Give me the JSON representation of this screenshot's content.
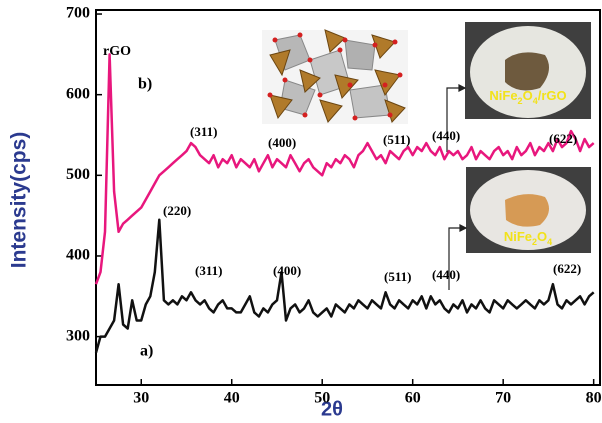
{
  "chart_data": {
    "type": "line",
    "x_label": "2θ",
    "y_label": "Intensity(cps)",
    "xlim": [
      25,
      80.7
    ],
    "ylim": [
      240,
      705
    ],
    "xticks": [
      30,
      40,
      50,
      60,
      70,
      80
    ],
    "yticks": [
      300,
      400,
      500,
      600,
      700
    ],
    "x": [
      25,
      25.5,
      26,
      26.5,
      27,
      27.5,
      28,
      28.5,
      29,
      29.5,
      30,
      30.5,
      31,
      31.5,
      32,
      32.5,
      33,
      33.5,
      34,
      34.5,
      35,
      35.5,
      36,
      36.5,
      37,
      37.5,
      38,
      38.5,
      39,
      39.5,
      40,
      40.5,
      41,
      41.5,
      42,
      42.5,
      43,
      43.5,
      44,
      44.5,
      45,
      45.5,
      46,
      46.5,
      47,
      47.5,
      48,
      48.5,
      49,
      49.5,
      50,
      50.5,
      51,
      51.5,
      52,
      52.5,
      53,
      53.5,
      54,
      54.5,
      55,
      55.5,
      56,
      56.5,
      57,
      57.5,
      58,
      58.5,
      59,
      59.5,
      60,
      60.5,
      61,
      61.5,
      62,
      62.5,
      63,
      63.5,
      64,
      64.5,
      65,
      65.5,
      66,
      66.5,
      67,
      67.5,
      68,
      68.5,
      69,
      69.5,
      70,
      70.5,
      71,
      71.5,
      72,
      72.5,
      73,
      73.5,
      74,
      74.5,
      75,
      75.5,
      76,
      76.5,
      77,
      77.5,
      78,
      78.5,
      79,
      79.5,
      80
    ],
    "series": [
      {
        "color": "#e8177d",
        "values": [
          365,
          380,
          430,
          650,
          480,
          430,
          440,
          445,
          450,
          455,
          460,
          470,
          480,
          490,
          500,
          505,
          510,
          515,
          520,
          525,
          530,
          540,
          535,
          525,
          520,
          515,
          525,
          510,
          520,
          515,
          525,
          510,
          520,
          515,
          510,
          520,
          505,
          515,
          525,
          510,
          520,
          515,
          510,
          525,
          515,
          505,
          515,
          520,
          510,
          505,
          500,
          515,
          510,
          520,
          515,
          525,
          520,
          510,
          525,
          530,
          540,
          530,
          520,
          525,
          515,
          530,
          525,
          520,
          530,
          535,
          525,
          535,
          530,
          540,
          530,
          525,
          535,
          520,
          530,
          525,
          530,
          520,
          525,
          535,
          520,
          530,
          525,
          520,
          530,
          535,
          525,
          530,
          520,
          535,
          525,
          530,
          540,
          525,
          535,
          530,
          540,
          530,
          545,
          535,
          540,
          555,
          545,
          530,
          545,
          535,
          540
        ]
      },
      {
        "color": "#111111",
        "values": [
          280,
          300,
          300,
          310,
          320,
          365,
          315,
          310,
          345,
          320,
          320,
          340,
          350,
          380,
          445,
          345,
          340,
          345,
          340,
          350,
          345,
          355,
          345,
          340,
          345,
          335,
          330,
          340,
          345,
          335,
          335,
          330,
          330,
          340,
          350,
          330,
          325,
          335,
          330,
          340,
          345,
          380,
          320,
          335,
          340,
          330,
          335,
          345,
          330,
          325,
          330,
          335,
          325,
          340,
          335,
          330,
          340,
          335,
          345,
          340,
          335,
          345,
          340,
          335,
          355,
          340,
          335,
          345,
          340,
          335,
          345,
          340,
          350,
          335,
          350,
          340,
          345,
          335,
          330,
          340,
          335,
          345,
          330,
          340,
          335,
          345,
          335,
          330,
          345,
          340,
          335,
          345,
          340,
          335,
          340,
          345,
          340,
          335,
          345,
          340,
          345,
          365,
          340,
          335,
          345,
          340,
          345,
          350,
          340,
          350,
          355
        ]
      }
    ],
    "annotations": [
      "rGO",
      "b)",
      "(311)",
      "(400)",
      "(511)",
      "(440)",
      "(622)",
      "(220)",
      "(311)",
      "(400)",
      "(511)",
      "(440)",
      "(622)",
      "a)"
    ],
    "inset_labels": [
      "NiFe2O4/rGO",
      "NiFe2O4"
    ]
  }
}
